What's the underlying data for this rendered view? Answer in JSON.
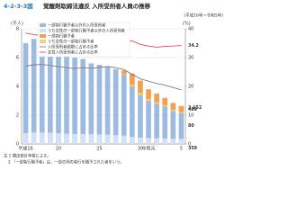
{
  "chart_data": {
    "type": "bar",
    "figure_number": "4-2-3-3図",
    "title": "覚醒剤取締法違反 入所受刑者人員の推移",
    "subtitle": "(平成16年～令和5年)",
    "y_label": "(千人)",
    "y2_label": "(%)",
    "categories": [
      "平成16",
      null,
      null,
      null,
      "20",
      null,
      null,
      null,
      null,
      "25",
      null,
      null,
      null,
      null,
      "30",
      "令和元",
      null,
      null,
      null,
      "5"
    ],
    "ylim": [
      0,
      8
    ],
    "yticks": [
      0,
      2,
      4,
      6,
      8
    ],
    "y2lim": [
      0,
      40
    ],
    "y2ticks": [
      0,
      10,
      20,
      30,
      40
    ],
    "grid": true,
    "series": [
      {
        "name": "一部執行猶予者以外の入所受刑者",
        "color": "#9dbbe0",
        "role": "base",
        "values": [
          7.0,
          7.3,
          7.2,
          6.8,
          6.6,
          6.2,
          6.0,
          5.9,
          5.6,
          5.5,
          5.4,
          5.2,
          4.8,
          4.0,
          3.4,
          3.0,
          2.8,
          2.6,
          2.3,
          2.152
        ],
        "value_labels": [
          null,
          null,
          null,
          null,
          null,
          null,
          null,
          null,
          null,
          null,
          null,
          null,
          null,
          null,
          null,
          null,
          null,
          null,
          null,
          "2,152"
        ]
      },
      {
        "name": "うち女性の一部執行猶予者以外の入所受刑者",
        "color": "#d3e1f3",
        "role": "base-part",
        "values": [
          0.75,
          0.8,
          0.8,
          0.78,
          0.75,
          0.72,
          0.7,
          0.7,
          0.68,
          0.66,
          0.65,
          0.62,
          0.58,
          0.5,
          0.45,
          0.42,
          0.4,
          0.39,
          0.37,
          0.359
        ],
        "value_labels": [
          null,
          null,
          null,
          null,
          null,
          null,
          null,
          null,
          null,
          null,
          null,
          null,
          null,
          null,
          null,
          null,
          null,
          null,
          null,
          "359"
        ]
      },
      {
        "name": "一部執行猶予者",
        "color": "#f0a050",
        "role": "top",
        "values": [
          null,
          null,
          null,
          null,
          null,
          null,
          null,
          null,
          null,
          null,
          null,
          null,
          0.3,
          0.9,
          1.0,
          0.8,
          0.7,
          0.6,
          0.55,
          0.489
        ],
        "value_labels": [
          null,
          null,
          null,
          null,
          null,
          null,
          null,
          null,
          null,
          null,
          null,
          null,
          null,
          null,
          null,
          null,
          null,
          null,
          null,
          "489"
        ]
      },
      {
        "name": "うち女性の一部執行猶予者",
        "color": "#f5d173",
        "role": "top-part",
        "values": [
          null,
          null,
          null,
          null,
          null,
          null,
          null,
          null,
          null,
          null,
          null,
          null,
          0.04,
          0.12,
          0.14,
          0.12,
          0.1,
          0.09,
          0.085,
          0.08
        ],
        "value_labels": [
          null,
          null,
          null,
          null,
          null,
          null,
          null,
          null,
          null,
          null,
          null,
          null,
          null,
          null,
          null,
          null,
          null,
          null,
          null,
          "80"
        ]
      },
      {
        "name": "入所受刑者総数に占める比率",
        "color": "#7f7f7f",
        "axis": "y2",
        "values": [
          27.0,
          27.5,
          27.6,
          27.3,
          26.9,
          26.5,
          26.2,
          26.5,
          26.3,
          26.6,
          26.9,
          26.5,
          25.8,
          24.2,
          22.6,
          21.8,
          21.0,
          20.5,
          19.6,
          18.8
        ]
      },
      {
        "name": "女性入所受刑者に占める比率",
        "color": "#e8474c",
        "axis": "y2",
        "values": [
          38.5,
          38.0,
          37.5,
          37.8,
          37.2,
          36.8,
          37.0,
          37.5,
          37.0,
          37.4,
          37.8,
          37.2,
          36.0,
          35.8,
          34.6,
          34.0,
          33.6,
          33.9,
          34.0,
          34.2
        ],
        "value_labels": [
          null,
          null,
          null,
          null,
          null,
          null,
          null,
          null,
          null,
          null,
          null,
          null,
          null,
          null,
          null,
          null,
          null,
          null,
          null,
          "34.2"
        ]
      }
    ],
    "notes": [
      "注 1 矯正統計年報による。",
      "2 「一部執行猶予者」は，一部の刑の執行を猶予された者をいう。"
    ]
  }
}
